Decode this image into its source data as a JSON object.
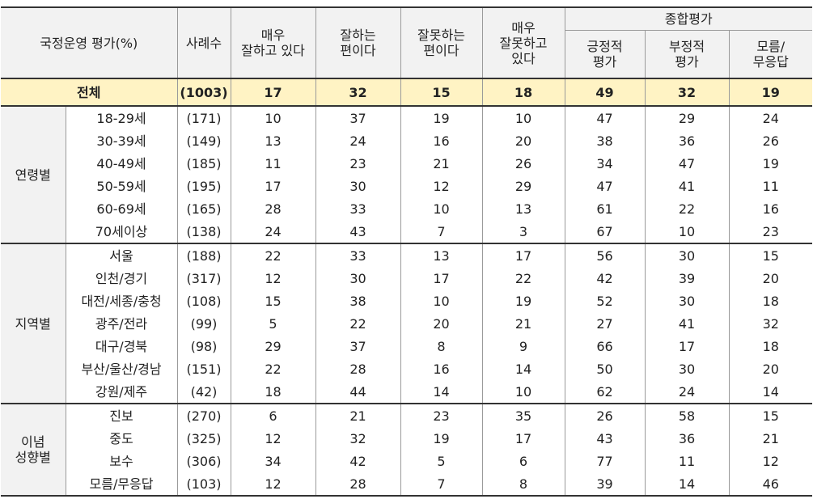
{
  "header": {
    "title": "국정운영 평가(%)",
    "cases": "사례수",
    "col_very_good": [
      "매우",
      "잘하고 있다"
    ],
    "col_good": [
      "잘하는",
      "편이다"
    ],
    "col_bad": [
      "잘못하는",
      "편이다"
    ],
    "col_very_bad": [
      "매우",
      "잘못하고",
      "있다"
    ],
    "summary": "종합평가",
    "col_positive": [
      "긍정적",
      "평가"
    ],
    "col_negative": [
      "부정적",
      "평가"
    ],
    "col_unknown": [
      "모름/",
      "무응답"
    ]
  },
  "total": {
    "label": "전체",
    "cases": "(1003)",
    "values": [
      "17",
      "32",
      "15",
      "18",
      "49",
      "32",
      "19"
    ]
  },
  "groups": [
    {
      "name": [
        "연령별"
      ],
      "rows": [
        {
          "label": "18-29세",
          "cases": "(171)",
          "values": [
            "10",
            "37",
            "19",
            "10",
            "47",
            "29",
            "24"
          ]
        },
        {
          "label": "30-39세",
          "cases": "(149)",
          "values": [
            "13",
            "24",
            "16",
            "20",
            "38",
            "36",
            "26"
          ]
        },
        {
          "label": "40-49세",
          "cases": "(185)",
          "values": [
            "11",
            "23",
            "21",
            "26",
            "34",
            "47",
            "19"
          ]
        },
        {
          "label": "50-59세",
          "cases": "(195)",
          "values": [
            "17",
            "30",
            "12",
            "29",
            "47",
            "41",
            "11"
          ]
        },
        {
          "label": "60-69세",
          "cases": "(165)",
          "values": [
            "28",
            "33",
            "10",
            "13",
            "61",
            "22",
            "16"
          ]
        },
        {
          "label": "70세이상",
          "cases": "(138)",
          "values": [
            "24",
            "43",
            "7",
            "3",
            "67",
            "10",
            "23"
          ]
        }
      ]
    },
    {
      "name": [
        "지역별"
      ],
      "rows": [
        {
          "label": "서울",
          "cases": "(188)",
          "values": [
            "22",
            "33",
            "13",
            "17",
            "56",
            "30",
            "15"
          ]
        },
        {
          "label": "인천/경기",
          "cases": "(317)",
          "values": [
            "12",
            "30",
            "17",
            "22",
            "42",
            "39",
            "20"
          ]
        },
        {
          "label": "대전/세종/충청",
          "cases": "(108)",
          "values": [
            "15",
            "38",
            "10",
            "19",
            "52",
            "30",
            "18"
          ]
        },
        {
          "label": "광주/전라",
          "cases": "(99)",
          "values": [
            "5",
            "22",
            "20",
            "21",
            "27",
            "41",
            "32"
          ]
        },
        {
          "label": "대구/경북",
          "cases": "(98)",
          "values": [
            "29",
            "37",
            "8",
            "9",
            "66",
            "17",
            "18"
          ]
        },
        {
          "label": "부산/울산/경남",
          "cases": "(151)",
          "values": [
            "22",
            "28",
            "16",
            "14",
            "50",
            "30",
            "20"
          ]
        },
        {
          "label": "강원/제주",
          "cases": "(42)",
          "values": [
            "18",
            "44",
            "14",
            "10",
            "62",
            "24",
            "14"
          ]
        }
      ]
    },
    {
      "name": [
        "이념",
        "성향별"
      ],
      "rows": [
        {
          "label": "진보",
          "cases": "(270)",
          "values": [
            "6",
            "21",
            "23",
            "35",
            "26",
            "58",
            "15"
          ]
        },
        {
          "label": "중도",
          "cases": "(325)",
          "values": [
            "12",
            "32",
            "19",
            "17",
            "43",
            "36",
            "21"
          ]
        },
        {
          "label": "보수",
          "cases": "(306)",
          "values": [
            "34",
            "42",
            "5",
            "6",
            "77",
            "11",
            "12"
          ]
        },
        {
          "label": "모름/무응답",
          "cases": "(103)",
          "values": [
            "12",
            "28",
            "7",
            "8",
            "39",
            "14",
            "46"
          ]
        }
      ]
    }
  ]
}
